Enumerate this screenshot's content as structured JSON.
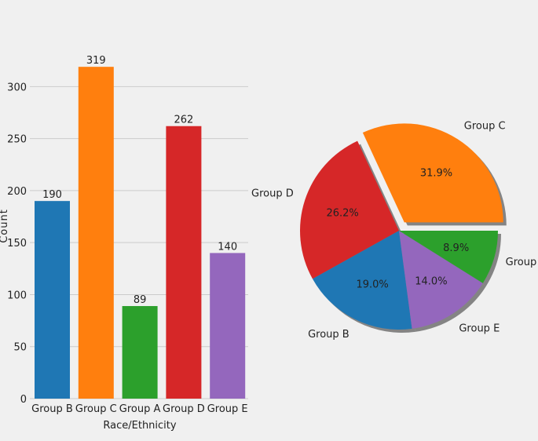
{
  "chart_data": [
    {
      "type": "bar",
      "categories": [
        "Group B",
        "Group C",
        "Group A",
        "Group D",
        "Group E"
      ],
      "values": [
        190,
        319,
        89,
        262,
        140
      ],
      "data_labels": [
        "190",
        "319",
        "89",
        "262",
        "140"
      ],
      "yticks": [
        0,
        50,
        100,
        150,
        200,
        250,
        300
      ],
      "ylim": [
        0,
        335
      ],
      "xlabel": "Race/Ethnicity",
      "ylabel": "Count",
      "grid": true,
      "colors": [
        "#1f77b4",
        "#ff7f0e",
        "#2ca02c",
        "#d62728",
        "#9467bd"
      ]
    },
    {
      "type": "pie",
      "labels": [
        "Group C",
        "Group D",
        "Group B",
        "Group E",
        "Group A"
      ],
      "values": [
        31.9,
        26.2,
        19.0,
        14.0,
        8.9
      ],
      "pct_labels": [
        "31.9%",
        "26.2%",
        "19.0%",
        "14.0%",
        "8.9%"
      ],
      "explode": [
        0.1,
        0,
        0,
        0,
        0
      ],
      "shadow": true,
      "colors": [
        "#ff7f0e",
        "#d62728",
        "#1f77b4",
        "#9467bd",
        "#2ca02c"
      ]
    }
  ]
}
